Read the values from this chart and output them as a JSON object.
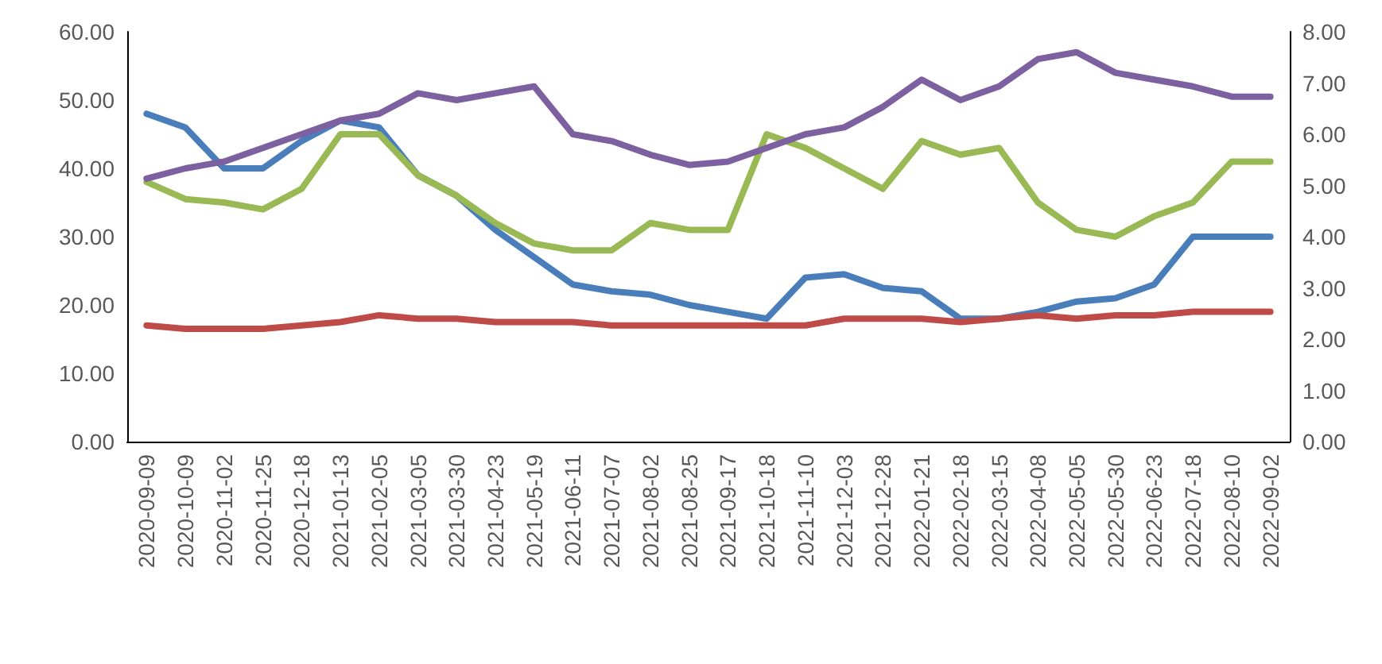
{
  "chart_data": {
    "type": "line",
    "categories": [
      "2020-09-09",
      "2020-10-09",
      "2020-11-02",
      "2020-11-25",
      "2020-12-18",
      "2021-01-13",
      "2021-02-05",
      "2021-03-05",
      "2021-03-30",
      "2021-04-23",
      "2021-05-19",
      "2021-06-11",
      "2021-07-07",
      "2021-08-02",
      "2021-08-25",
      "2021-09-17",
      "2021-10-18",
      "2021-11-10",
      "2021-12-03",
      "2021-12-28",
      "2022-01-21",
      "2022-02-18",
      "2022-03-15",
      "2022-04-08",
      "2022-05-05",
      "2022-05-30",
      "2022-06-23",
      "2022-07-18",
      "2022-08-10",
      "2022-09-02"
    ],
    "series": [
      {
        "color": "#4a7ebb",
        "values": [
          48,
          46,
          40,
          40,
          44,
          47,
          46,
          39,
          36,
          31,
          27,
          23,
          22,
          21.5,
          20,
          19,
          18,
          24,
          24.5,
          22.5,
          22,
          18,
          18,
          19,
          20.5,
          21,
          23,
          30,
          30,
          30
        ]
      },
      {
        "color": "#be4b48",
        "values": [
          17,
          16.5,
          16.5,
          16.5,
          17,
          17.5,
          18.5,
          18,
          18,
          17.5,
          17.5,
          17.5,
          17,
          17,
          17,
          17,
          17,
          17,
          18,
          18,
          18,
          17.5,
          18,
          18.5,
          18,
          18.5,
          18.5,
          19,
          19,
          19
        ]
      },
      {
        "color": "#98b954",
        "values": [
          38,
          35.5,
          35,
          34,
          37,
          45,
          45,
          39,
          36,
          32,
          29,
          28,
          28,
          32,
          31,
          31,
          45,
          43,
          40,
          37,
          44,
          42,
          43,
          35,
          31,
          30,
          33,
          35,
          41,
          41
        ]
      },
      {
        "color": "#7d60a0",
        "values": [
          38.5,
          40,
          41,
          43,
          45,
          47,
          48,
          51,
          50,
          51,
          52,
          45,
          44,
          42,
          40.5,
          41,
          43,
          45,
          46,
          49,
          53,
          50,
          52,
          56,
          57,
          54,
          53,
          52,
          50.5,
          50.5
        ]
      }
    ],
    "ylim": [
      0,
      60
    ],
    "yticks": [
      {
        "value": 0,
        "label": "0.00"
      },
      {
        "value": 10,
        "label": "10.00"
      },
      {
        "value": 20,
        "label": "20.00"
      },
      {
        "value": 30,
        "label": "30.00"
      },
      {
        "value": 40,
        "label": "40.00"
      },
      {
        "value": 50,
        "label": "50.00"
      },
      {
        "value": 60,
        "label": "60.00"
      }
    ],
    "y2lim": [
      0,
      8
    ],
    "y2ticks": [
      {
        "value": 0,
        "label": "0.00"
      },
      {
        "value": 1,
        "label": "1.00"
      },
      {
        "value": 2,
        "label": "2.00"
      },
      {
        "value": 3,
        "label": "3.00"
      },
      {
        "value": 4,
        "label": "4.00"
      },
      {
        "value": 5,
        "label": "5.00"
      },
      {
        "value": 6,
        "label": "6.00"
      },
      {
        "value": 7,
        "label": "7.00"
      },
      {
        "value": 8,
        "label": "8.00"
      }
    ],
    "grid": false,
    "marker": "none",
    "line_style": "solid"
  }
}
